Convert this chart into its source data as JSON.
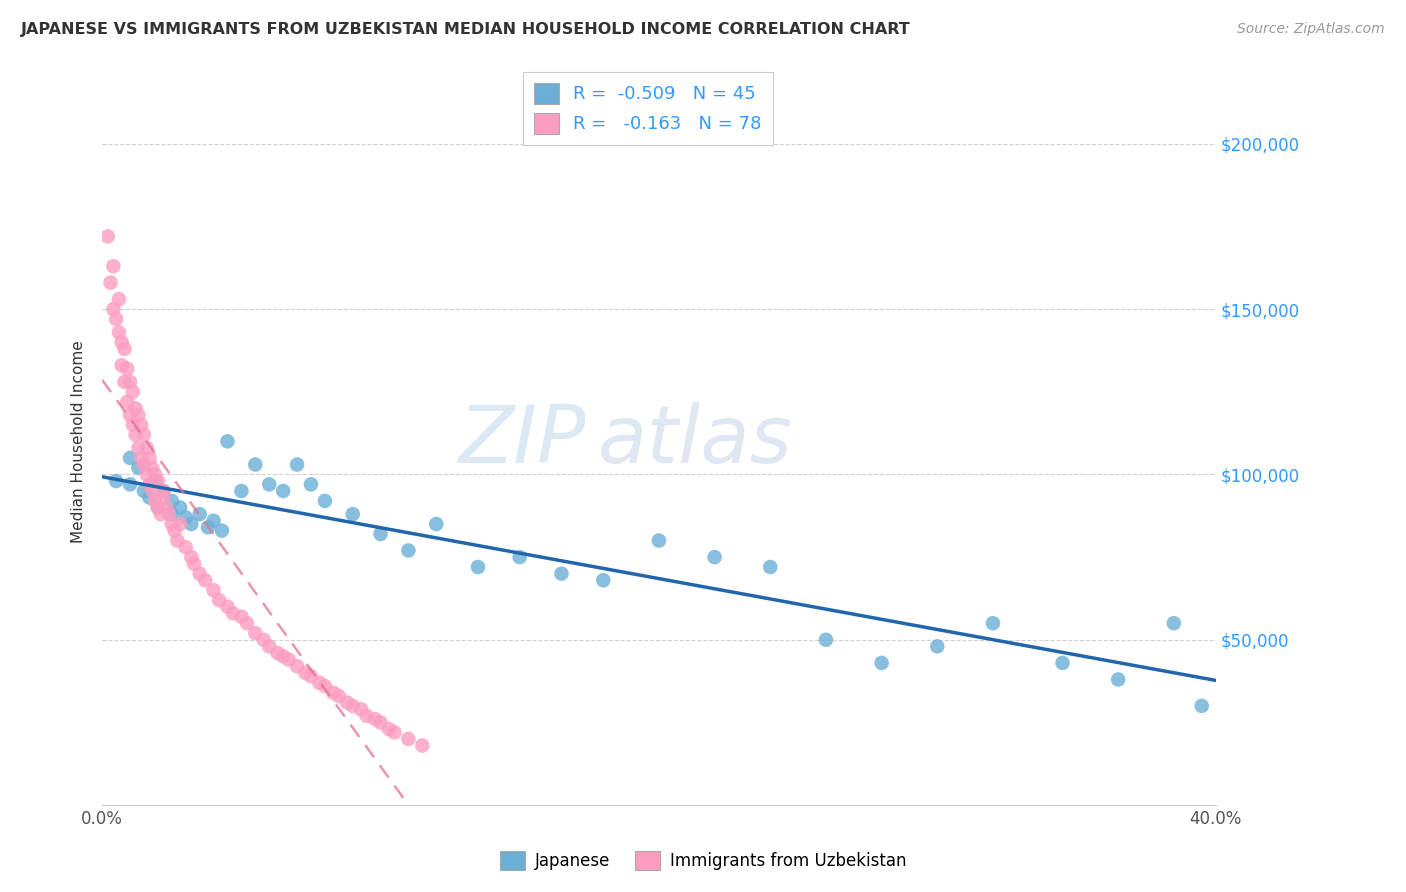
{
  "title": "JAPANESE VS IMMIGRANTS FROM UZBEKISTAN MEDIAN HOUSEHOLD INCOME CORRELATION CHART",
  "source": "Source: ZipAtlas.com",
  "ylabel": "Median Household Income",
  "watermark_zip": "ZIP",
  "watermark_atlas": "atlas",
  "xlim": [
    0.0,
    0.4
  ],
  "ylim": [
    0,
    220000
  ],
  "xticks": [
    0.0,
    0.05,
    0.1,
    0.15,
    0.2,
    0.25,
    0.3,
    0.35,
    0.4
  ],
  "xticklabels": [
    "0.0%",
    "",
    "",
    "",
    "",
    "",
    "",
    "",
    "40.0%"
  ],
  "yticks": [
    0,
    50000,
    100000,
    150000,
    200000
  ],
  "yticklabels": [
    "",
    "$50,000",
    "$100,000",
    "$150,000",
    "$200,000"
  ],
  "legend_r1": "R =  -0.509   N = 45",
  "legend_r2": "R =   -0.163   N = 78",
  "blue_color": "#6baed6",
  "pink_color": "#fc9cbf",
  "blue_line_color": "#2166ac",
  "pink_line_color": "#e07090",
  "grid_color": "#cccccc",
  "background_color": "#ffffff",
  "japanese_x": [
    0.005,
    0.01,
    0.01,
    0.013,
    0.015,
    0.017,
    0.019,
    0.02,
    0.022,
    0.025,
    0.025,
    0.028,
    0.03,
    0.032,
    0.035,
    0.038,
    0.04,
    0.043,
    0.045,
    0.05,
    0.055,
    0.06,
    0.065,
    0.07,
    0.075,
    0.08,
    0.09,
    0.1,
    0.11,
    0.12,
    0.135,
    0.15,
    0.165,
    0.18,
    0.2,
    0.22,
    0.24,
    0.26,
    0.28,
    0.3,
    0.32,
    0.345,
    0.365,
    0.385,
    0.395
  ],
  "japanese_y": [
    98000,
    105000,
    97000,
    102000,
    95000,
    93000,
    98000,
    90000,
    95000,
    88000,
    92000,
    90000,
    87000,
    85000,
    88000,
    84000,
    86000,
    83000,
    110000,
    95000,
    103000,
    97000,
    95000,
    103000,
    97000,
    92000,
    88000,
    82000,
    77000,
    85000,
    72000,
    75000,
    70000,
    68000,
    80000,
    75000,
    72000,
    50000,
    43000,
    48000,
    55000,
    43000,
    38000,
    55000,
    30000
  ],
  "uzbek_x": [
    0.002,
    0.003,
    0.004,
    0.004,
    0.005,
    0.006,
    0.006,
    0.007,
    0.007,
    0.008,
    0.008,
    0.009,
    0.009,
    0.01,
    0.01,
    0.011,
    0.011,
    0.012,
    0.012,
    0.013,
    0.013,
    0.014,
    0.014,
    0.015,
    0.015,
    0.016,
    0.016,
    0.017,
    0.017,
    0.018,
    0.018,
    0.019,
    0.019,
    0.02,
    0.02,
    0.021,
    0.022,
    0.022,
    0.023,
    0.024,
    0.025,
    0.026,
    0.027,
    0.028,
    0.03,
    0.032,
    0.033,
    0.035,
    0.037,
    0.04,
    0.042,
    0.045,
    0.047,
    0.05,
    0.052,
    0.055,
    0.058,
    0.06,
    0.063,
    0.065,
    0.067,
    0.07,
    0.073,
    0.075,
    0.078,
    0.08,
    0.083,
    0.085,
    0.088,
    0.09,
    0.093,
    0.095,
    0.098,
    0.1,
    0.103,
    0.105,
    0.11,
    0.115
  ],
  "uzbek_y": [
    172000,
    158000,
    150000,
    163000,
    147000,
    143000,
    153000,
    140000,
    133000,
    138000,
    128000,
    132000,
    122000,
    118000,
    128000,
    115000,
    125000,
    112000,
    120000,
    108000,
    118000,
    105000,
    115000,
    103000,
    112000,
    100000,
    108000,
    97000,
    105000,
    95000,
    102000,
    92000,
    100000,
    90000,
    98000,
    88000,
    95000,
    93000,
    90000,
    88000,
    85000,
    83000,
    80000,
    85000,
    78000,
    75000,
    73000,
    70000,
    68000,
    65000,
    62000,
    60000,
    58000,
    57000,
    55000,
    52000,
    50000,
    48000,
    46000,
    45000,
    44000,
    42000,
    40000,
    39000,
    37000,
    36000,
    34000,
    33000,
    31000,
    30000,
    29000,
    27000,
    26000,
    25000,
    23000,
    22000,
    20000,
    18000
  ]
}
